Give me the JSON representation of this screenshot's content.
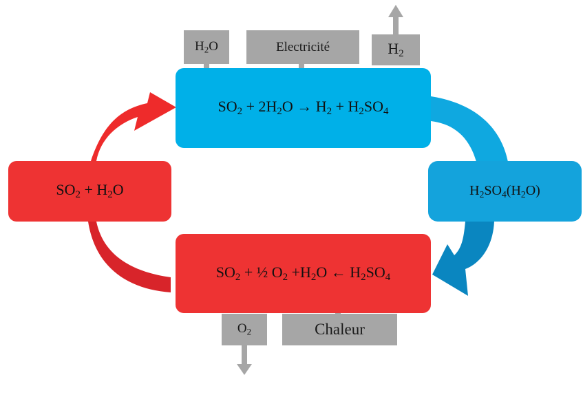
{
  "colors": {
    "blue": "#00b0e8",
    "blue_dark": "#0a86c0",
    "red": "#ee3333",
    "red_dark": "#d8242a",
    "gray": "#a6a6a6"
  },
  "inputs_top": {
    "water": {
      "main": "H",
      "sub": "2",
      "rest": "O"
    },
    "electricity": "Electricité",
    "hydrogen": {
      "main": "H",
      "sub": "2"
    }
  },
  "top_reaction": {
    "p1": "SO",
    "s1": "2",
    "p2": " + 2H",
    "s2": "2",
    "p3": "O → H",
    "s3": "2",
    "p4": " + H",
    "s4": "2",
    "p5": "SO",
    "s5": "4"
  },
  "right_node": {
    "p1": "H",
    "s1": "2",
    "p2": "SO",
    "s2": "4",
    "p3": "(H",
    "s3": "2",
    "p4": "O)"
  },
  "left_node": {
    "p1": "SO",
    "s1": "2",
    "p2": " + H",
    "s2": "2",
    "p3": "O"
  },
  "bottom_reaction": {
    "p1": "SO",
    "s1": "2",
    "p2": " + ½ O",
    "s2": "2",
    "p3": " +H",
    "s3": "2",
    "p4": "O ← H",
    "s4": "2",
    "p5": "SO",
    "s5": "4"
  },
  "outputs_bottom": {
    "oxygen": {
      "main": "O",
      "sub": "2"
    },
    "heat": "Chaleur"
  }
}
